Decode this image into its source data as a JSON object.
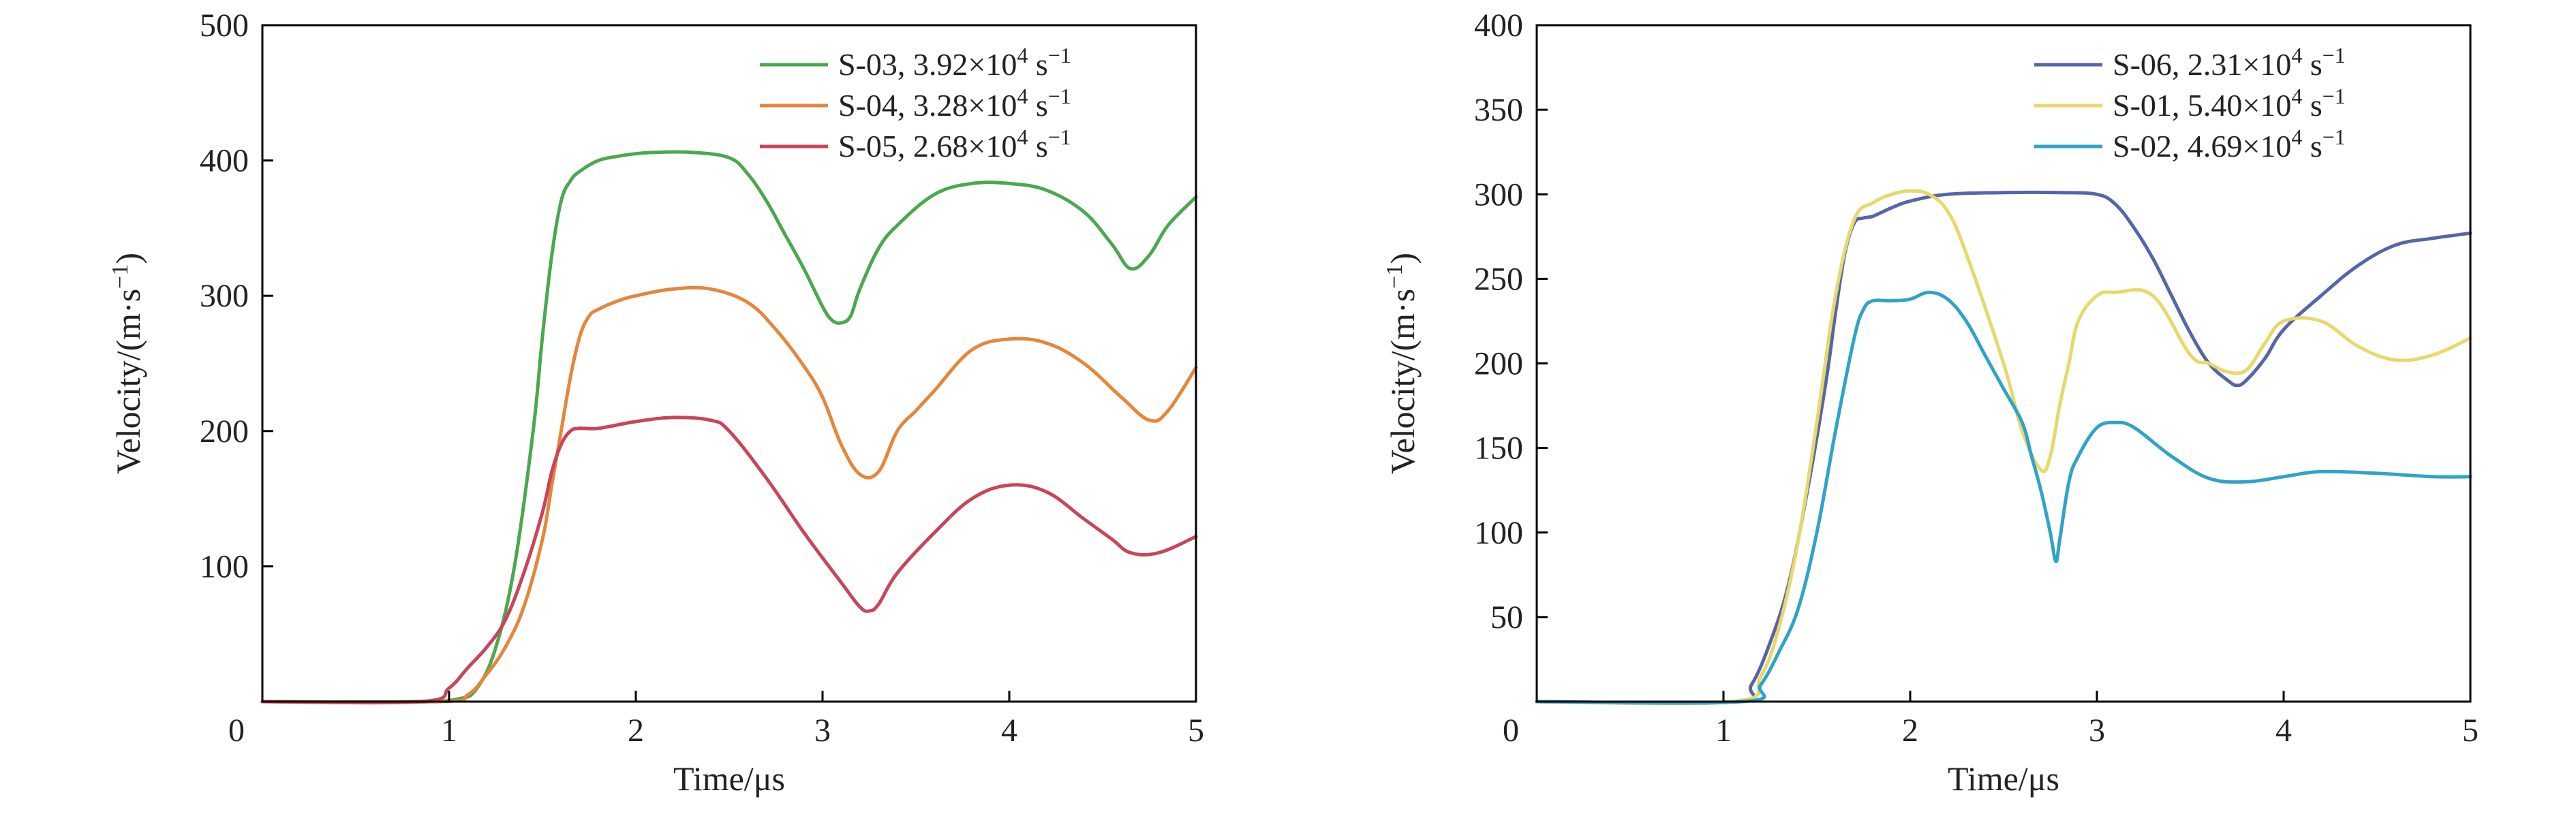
{
  "chart_data": [
    {
      "type": "line",
      "xlabel_base": "Time/",
      "xlabel_unit": "μs",
      "ylabel_base": "Velocity/(m·s",
      "ylabel_sup": "−1",
      "ylabel_end": ")",
      "xlim": [
        0,
        5
      ],
      "ylim": [
        0,
        500
      ],
      "x_ticks": [
        "0",
        "1",
        "2",
        "3",
        "4",
        "5"
      ],
      "x_tick_values": [
        0,
        1,
        2,
        3,
        4,
        5
      ],
      "y_ticks": [
        "100",
        "200",
        "300",
        "400",
        "500"
      ],
      "y_tick_values": [
        100,
        200,
        300,
        400,
        500
      ],
      "legend_position": "top-right",
      "series": [
        {
          "name_prefix": "S-03, 3.92×10",
          "name_exp": "4",
          "name_unit": "s",
          "name_unit_exp": "−1",
          "color": "#4aa84e",
          "x": [
            0,
            0.8,
            1.05,
            1.15,
            1.25,
            1.35,
            1.45,
            1.5,
            1.55,
            1.6,
            1.65,
            1.7,
            1.8,
            1.9,
            2.0,
            2.1,
            2.3,
            2.5,
            2.6,
            2.7,
            2.8,
            2.9,
            3.0,
            3.05,
            3.1,
            3.15,
            3.2,
            3.3,
            3.4,
            3.6,
            3.8,
            4.0,
            4.2,
            4.4,
            4.55,
            4.65,
            4.75,
            4.85,
            5.0
          ],
          "y": [
            0,
            0,
            2,
            10,
            40,
            100,
            200,
            270,
            330,
            370,
            385,
            392,
            400,
            403,
            405,
            406,
            406,
            402,
            390,
            370,
            345,
            320,
            292,
            282,
            280,
            285,
            305,
            335,
            352,
            375,
            383,
            383,
            378,
            362,
            338,
            320,
            330,
            352,
            373
          ]
        },
        {
          "name_prefix": "S-04, 3.28×10",
          "name_exp": "4",
          "name_unit": "s",
          "name_unit_exp": "−1",
          "color": "#e4873a",
          "x": [
            0,
            0.95,
            1.1,
            1.2,
            1.3,
            1.4,
            1.5,
            1.55,
            1.6,
            1.65,
            1.7,
            1.75,
            1.8,
            1.9,
            2.0,
            2.2,
            2.4,
            2.6,
            2.75,
            2.9,
            3.0,
            3.1,
            3.2,
            3.3,
            3.4,
            3.5,
            3.6,
            3.8,
            4.0,
            4.2,
            4.4,
            4.6,
            4.75,
            4.85,
            5.0
          ],
          "y": [
            0,
            0,
            5,
            20,
            40,
            70,
            120,
            160,
            200,
            240,
            270,
            285,
            290,
            296,
            300,
            305,
            305,
            295,
            275,
            248,
            225,
            190,
            168,
            170,
            200,
            215,
            230,
            260,
            268,
            265,
            250,
            225,
            208,
            215,
            247
          ]
        },
        {
          "name_prefix": "S-05, 2.68×10",
          "name_exp": "4",
          "name_unit": "s",
          "name_unit_exp": "−1",
          "color": "#c8455a",
          "x": [
            0,
            0.85,
            1.0,
            1.1,
            1.2,
            1.3,
            1.4,
            1.5,
            1.55,
            1.6,
            1.65,
            1.7,
            1.8,
            2.0,
            2.2,
            2.4,
            2.5,
            2.7,
            2.9,
            3.1,
            3.2,
            3.25,
            3.3,
            3.4,
            3.6,
            3.8,
            4.0,
            4.2,
            4.4,
            4.55,
            4.65,
            4.8,
            5.0
          ],
          "y": [
            0,
            0,
            10,
            25,
            40,
            60,
            95,
            140,
            170,
            190,
            200,
            202,
            202,
            207,
            210,
            208,
            200,
            165,
            125,
            88,
            70,
            67,
            72,
            95,
            125,
            150,
            160,
            155,
            135,
            120,
            110,
            110,
            122
          ]
        }
      ]
    },
    {
      "type": "line",
      "xlabel_base": "Time/",
      "xlabel_unit": "μs",
      "ylabel_base": "Velocity/(m·s",
      "ylabel_sup": "−1",
      "ylabel_end": ")",
      "xlim": [
        0,
        5
      ],
      "ylim": [
        0,
        400
      ],
      "x_ticks": [
        "0",
        "1",
        "2",
        "3",
        "4",
        "5"
      ],
      "x_tick_values": [
        0,
        1,
        2,
        3,
        4,
        5
      ],
      "y_ticks": [
        "50",
        "100",
        "150",
        "200",
        "250",
        "300",
        "350",
        "400"
      ],
      "y_tick_values": [
        50,
        100,
        150,
        200,
        250,
        300,
        350,
        400
      ],
      "legend_position": "top-right",
      "series": [
        {
          "name_prefix": "S-06, 2.31×10",
          "name_exp": "4",
          "name_unit": "s",
          "name_unit_exp": "−1",
          "color": "#5566a8",
          "x": [
            0,
            1.05,
            1.15,
            1.25,
            1.35,
            1.45,
            1.55,
            1.6,
            1.65,
            1.7,
            1.75,
            1.8,
            1.9,
            2.0,
            2.2,
            2.5,
            2.8,
            3.0,
            3.1,
            3.2,
            3.3,
            3.4,
            3.5,
            3.6,
            3.7,
            3.75,
            3.8,
            3.9,
            4.0,
            4.2,
            4.4,
            4.6,
            4.8,
            5.0
          ],
          "y": [
            0,
            0,
            10,
            35,
            70,
            125,
            190,
            230,
            265,
            283,
            286,
            287,
            292,
            296,
            300,
            301,
            301,
            300,
            294,
            280,
            262,
            240,
            218,
            200,
            190,
            187,
            190,
            203,
            220,
            240,
            258,
            270,
            274,
            277
          ]
        },
        {
          "name_prefix": "S-01, 5.40×10",
          "name_exp": "4",
          "name_unit": "s",
          "name_unit_exp": "−1",
          "color": "#e8d86a",
          "x": [
            0,
            1.05,
            1.2,
            1.3,
            1.4,
            1.5,
            1.6,
            1.7,
            1.8,
            1.9,
            2.0,
            2.1,
            2.2,
            2.3,
            2.5,
            2.6,
            2.7,
            2.75,
            2.8,
            2.85,
            2.9,
            3.0,
            3.1,
            3.3,
            3.5,
            3.6,
            3.7,
            3.8,
            3.9,
            4.0,
            4.2,
            4.4,
            4.6,
            4.8,
            5.0
          ],
          "y": [
            0,
            0,
            15,
            45,
            95,
            165,
            240,
            285,
            295,
            300,
            302,
            300,
            290,
            265,
            200,
            160,
            137,
            145,
            175,
            200,
            225,
            240,
            242,
            240,
            205,
            200,
            195,
            196,
            212,
            225,
            225,
            210,
            202,
            205,
            215
          ]
        },
        {
          "name_prefix": "S-02, 4.69×10",
          "name_exp": "4",
          "name_unit": "s",
          "name_unit_exp": "−1",
          "color": "#2fa3c8",
          "x": [
            0,
            1.1,
            1.2,
            1.3,
            1.4,
            1.5,
            1.6,
            1.7,
            1.75,
            1.8,
            1.9,
            2.0,
            2.1,
            2.2,
            2.3,
            2.4,
            2.5,
            2.6,
            2.65,
            2.7,
            2.75,
            2.78,
            2.8,
            2.85,
            2.9,
            3.0,
            3.1,
            3.2,
            3.4,
            3.6,
            3.8,
            4.0,
            4.2,
            4.5,
            4.8,
            5.0
          ],
          "y": [
            0,
            0,
            10,
            30,
            55,
            100,
            160,
            215,
            232,
            237,
            237,
            238,
            242,
            238,
            225,
            205,
            185,
            165,
            145,
            125,
            100,
            83,
            95,
            130,
            145,
            162,
            165,
            162,
            145,
            132,
            130,
            133,
            136,
            135,
            133,
            133
          ]
        }
      ]
    }
  ]
}
